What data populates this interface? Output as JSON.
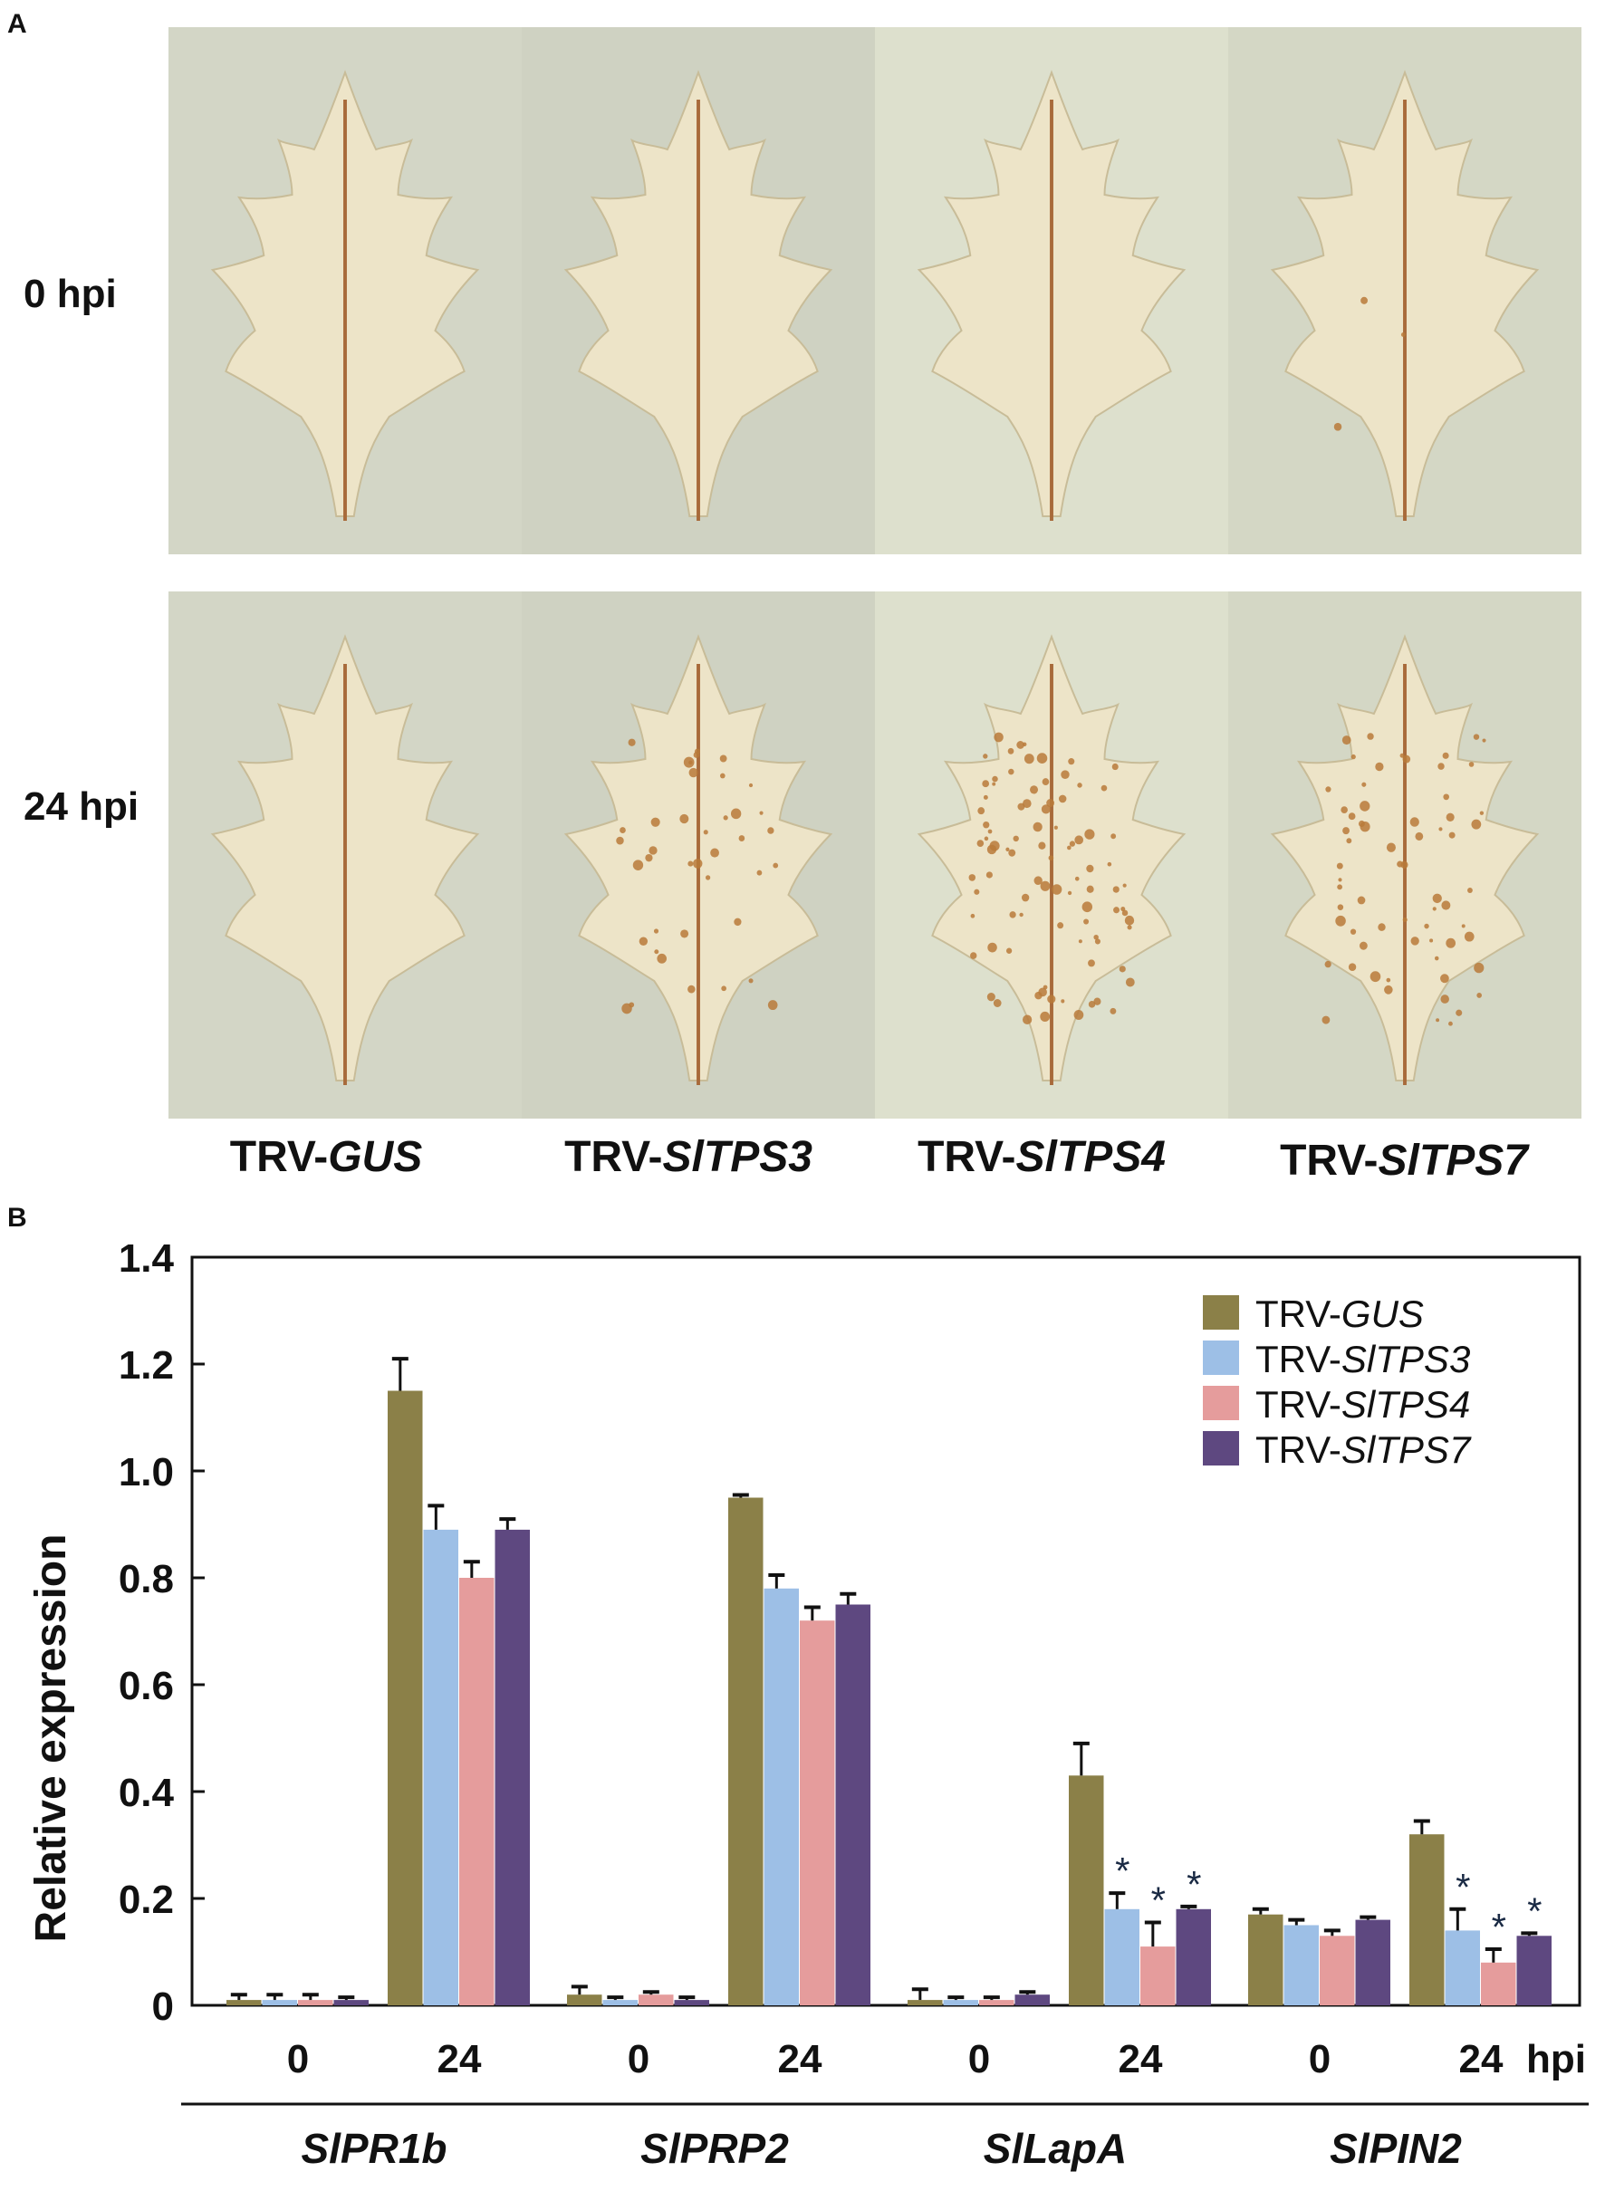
{
  "panels": {
    "a": "A",
    "b": "B"
  },
  "photos": {
    "row_labels": [
      "0 hpi",
      "24 hpi"
    ],
    "columns": [
      {
        "prefix": "TRV-",
        "gene": "GUS"
      },
      {
        "prefix": "TRV-",
        "gene": "SlTPS3"
      },
      {
        "prefix": "TRV-",
        "gene": "SlTPS4"
      },
      {
        "prefix": "TRV-",
        "gene": "SlTPS7"
      }
    ],
    "backgrounds": [
      "#d3d6c6",
      "#cfd2c2",
      "#dde0cd",
      "#d4d7c5"
    ],
    "spot_density": [
      [
        0,
        0,
        0,
        3
      ],
      [
        0,
        40,
        90,
        65
      ]
    ]
  },
  "chart_data": {
    "type": "bar",
    "title": "",
    "ylabel": "Relative expression",
    "ylim": [
      0,
      1.4
    ],
    "yticks": [
      "0",
      "0.2",
      "0.4",
      "0.6",
      "0.8",
      "1.0",
      "1.2",
      "1.4"
    ],
    "ytick_values": [
      0,
      0.2,
      0.4,
      0.6,
      0.8,
      1.0,
      1.2,
      1.4
    ],
    "genes": [
      "SlPR1b",
      "SlPRP2",
      "SlLapA",
      "SlPIN2"
    ],
    "timepoints": [
      "0",
      "24"
    ],
    "unit_label": "hpi",
    "series": [
      {
        "name": "TRV-GUS",
        "prefix": "TRV-",
        "gene": "GUS",
        "color": "#8b8048",
        "values": [
          0.01,
          1.15,
          0.02,
          0.95,
          0.01,
          0.43,
          0.17,
          0.32
        ],
        "errors": [
          0.01,
          0.06,
          0.015,
          0.005,
          0.02,
          0.06,
          0.01,
          0.025
        ],
        "sig": [
          false,
          false,
          false,
          false,
          false,
          false,
          false,
          false
        ]
      },
      {
        "name": "TRV-SlTPS3",
        "prefix": "TRV-",
        "gene": "SlTPS3",
        "color": "#9dbfe6",
        "values": [
          0.01,
          0.89,
          0.01,
          0.78,
          0.01,
          0.18,
          0.15,
          0.14
        ],
        "errors": [
          0.01,
          0.045,
          0.005,
          0.025,
          0.005,
          0.03,
          0.01,
          0.04
        ],
        "sig": [
          false,
          false,
          false,
          false,
          false,
          true,
          false,
          true
        ]
      },
      {
        "name": "TRV-SlTPS4",
        "prefix": "TRV-",
        "gene": "SlTPS4",
        "color": "#e59c9c",
        "values": [
          0.01,
          0.8,
          0.02,
          0.72,
          0.01,
          0.11,
          0.13,
          0.08
        ],
        "errors": [
          0.01,
          0.03,
          0.005,
          0.025,
          0.005,
          0.045,
          0.01,
          0.025
        ],
        "sig": [
          false,
          false,
          false,
          false,
          false,
          true,
          false,
          true
        ]
      },
      {
        "name": "TRV-SlTPS7",
        "prefix": "TRV-",
        "gene": "SlTPS7",
        "color": "#5e4880",
        "values": [
          0.01,
          0.89,
          0.01,
          0.75,
          0.02,
          0.18,
          0.16,
          0.13
        ],
        "errors": [
          0.005,
          0.02,
          0.005,
          0.02,
          0.005,
          0.005,
          0.005,
          0.005
        ],
        "sig": [
          false,
          false,
          false,
          false,
          false,
          true,
          false,
          true
        ]
      }
    ],
    "significance_marker": "*",
    "legend_position": "top-right",
    "grid": false
  }
}
